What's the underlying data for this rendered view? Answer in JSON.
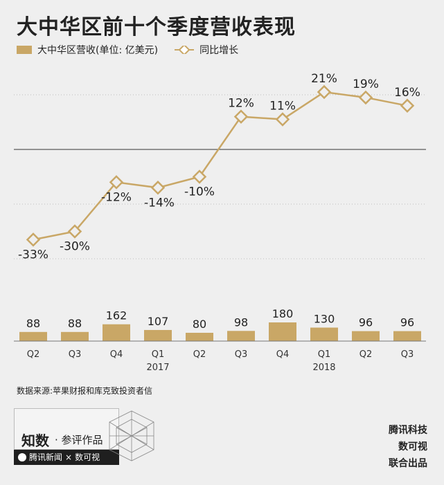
{
  "title": "大中华区前十个季度营收表现",
  "legend": {
    "bar_label": "大中华区营收(单位: 亿美元)",
    "line_label": "同比增长"
  },
  "source": "数据来源:苹果财报和库克致投资者信",
  "credit": {
    "brand_main": "知数",
    "brand_sub": "· 参评作品",
    "partner1": "腾讯新闻",
    "cross": "×",
    "partner2": "数可视",
    "right_lines": [
      "腾讯科技",
      "数可视",
      "联合出品"
    ]
  },
  "colors": {
    "bar": "#c9a766",
    "line": "#c9a766",
    "grid": "#bdbdbd",
    "text": "#222222"
  },
  "chart_data": {
    "type": "bar",
    "title": "大中华区前十个季度营收表现",
    "categories": [
      "Q2",
      "Q3",
      "Q4",
      "Q1",
      "Q2",
      "Q3",
      "Q4",
      "Q1",
      "Q2",
      "Q3"
    ],
    "year_labels": [
      "",
      "",
      "",
      "2017",
      "",
      "",
      "",
      "2018",
      "",
      ""
    ],
    "series": [
      {
        "name": "大中华区营收(单位: 亿美元)",
        "type": "bar",
        "values": [
          88,
          88,
          162,
          107,
          80,
          98,
          180,
          130,
          96,
          96
        ]
      },
      {
        "name": "同比增长",
        "type": "line",
        "values": [
          -33,
          -30,
          -12,
          -14,
          -10,
          12,
          11,
          21,
          19,
          16
        ],
        "value_labels": [
          "-33%",
          "-30%",
          "-12%",
          "-14%",
          "-10%",
          "12%",
          "11%",
          "21%",
          "19%",
          "16%"
        ]
      }
    ],
    "bar_value_labels": [
      "88",
      "88",
      "162",
      "107",
      "80",
      "98",
      "180",
      "130",
      "96",
      "96"
    ],
    "growth_range": [
      -40,
      30
    ],
    "revenue_range": [
      0,
      700
    ]
  }
}
